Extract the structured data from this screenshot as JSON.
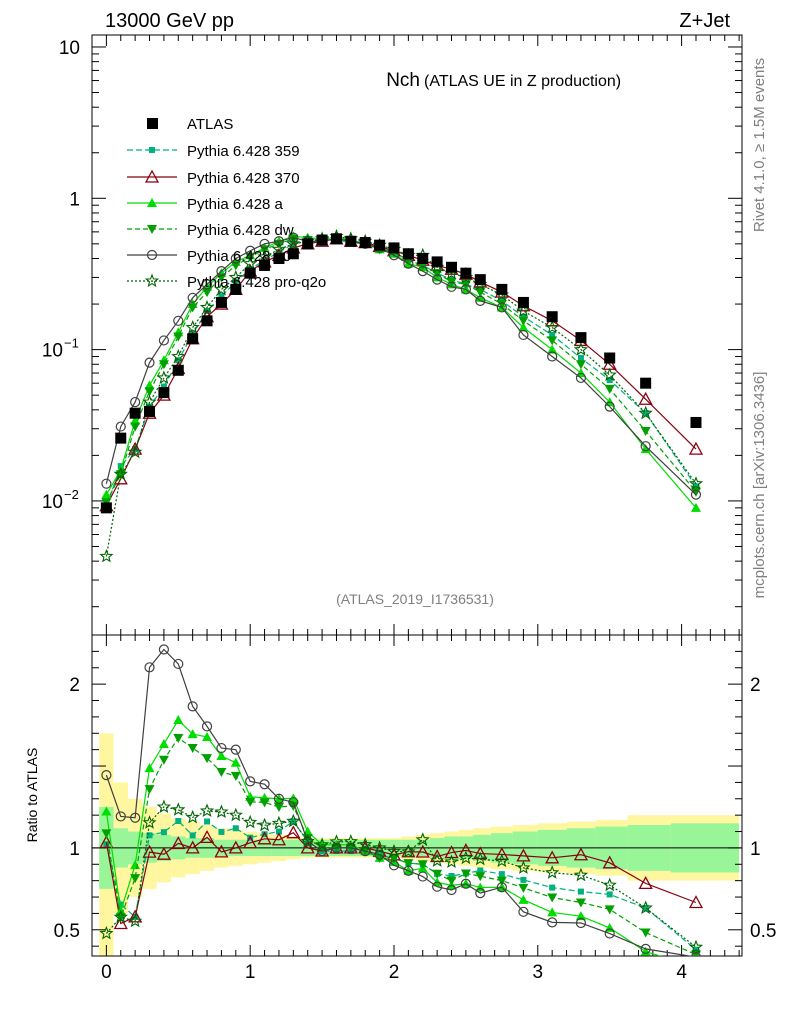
{
  "chart_data": {
    "type": "line",
    "top_left_label": "13000 GeV pp",
    "top_right_label": "Z+Jet",
    "title_main": "Nch",
    "title_sub": "(ATLAS UE in Z production)",
    "analysis_id": "(ATLAS_2019_I1736531)",
    "side_label_1": "Rivet 4.1.0, ≥ 1.5M events",
    "side_label_2": "mcplots.cern.ch [arXiv:1306.3436]",
    "ratio_ylabel": "Ratio to ATLAS",
    "main_ylim": [
      0.0013,
      12
    ],
    "main_yscale": "log",
    "main_yticks": [
      {
        "value": 10,
        "label": "10"
      },
      {
        "value": 1,
        "label": "1"
      },
      {
        "value": 0.1,
        "base": "10",
        "exp": "−1"
      },
      {
        "value": 0.01,
        "base": "10",
        "exp": "−2"
      }
    ],
    "ratio_ylim": [
      0.34,
      2.3
    ],
    "ratio_yticks": [
      {
        "value": 2,
        "label": "2"
      },
      {
        "value": 1,
        "label": "1"
      },
      {
        "value": 0.5,
        "label": "0.5"
      }
    ],
    "xlim": [
      -0.1,
      4.42
    ],
    "xticks": [
      {
        "value": 0,
        "label": "0"
      },
      {
        "value": 1,
        "label": "1"
      },
      {
        "value": 2,
        "label": "2"
      },
      {
        "value": 3,
        "label": "3"
      },
      {
        "value": 4,
        "label": "4"
      }
    ],
    "data": {
      "name": "ATLAS",
      "x": [
        0,
        0.1,
        0.2,
        0.3,
        0.4,
        0.5,
        0.6,
        0.7,
        0.8,
        0.9,
        1.0,
        1.1,
        1.2,
        1.3,
        1.4,
        1.5,
        1.6,
        1.7,
        1.8,
        1.9,
        2.0,
        2.1,
        2.2,
        2.3,
        2.4,
        2.5,
        2.6,
        2.75,
        2.9,
        3.1,
        3.3,
        3.5,
        3.75,
        4.1
      ],
      "y": [
        0.009,
        0.026,
        0.038,
        0.039,
        0.052,
        0.073,
        0.118,
        0.155,
        0.205,
        0.25,
        0.32,
        0.36,
        0.4,
        0.43,
        0.5,
        0.53,
        0.54,
        0.52,
        0.51,
        0.49,
        0.47,
        0.43,
        0.4,
        0.38,
        0.35,
        0.32,
        0.29,
        0.25,
        0.205,
        0.165,
        0.12,
        0.088,
        0.06,
        0.033
      ],
      "band_inner": [
        0.25,
        0.12,
        0.1,
        0.09,
        0.08,
        0.07,
        0.06,
        0.06,
        0.05,
        0.05,
        0.05,
        0.05,
        0.05,
        0.05,
        0.05,
        0.05,
        0.05,
        0.05,
        0.05,
        0.05,
        0.05,
        0.05,
        0.05,
        0.06,
        0.07,
        0.07,
        0.08,
        0.09,
        0.1,
        0.11,
        0.12,
        0.13,
        0.14,
        0.15
      ],
      "band_outer": [
        0.7,
        0.4,
        0.3,
        0.25,
        0.21,
        0.18,
        0.16,
        0.14,
        0.12,
        0.11,
        0.1,
        0.09,
        0.08,
        0.07,
        0.06,
        0.06,
        0.06,
        0.06,
        0.06,
        0.06,
        0.06,
        0.07,
        0.08,
        0.09,
        0.1,
        0.11,
        0.12,
        0.13,
        0.14,
        0.15,
        0.16,
        0.17,
        0.2,
        0.2
      ]
    },
    "series": [
      {
        "name": "Pythia 6.428 359",
        "color": "#00b080",
        "dash": "6,3",
        "marker": "square-small",
        "values": [
          0.0092,
          0.017,
          0.022,
          0.042,
          0.057,
          0.085,
          0.127,
          0.18,
          0.225,
          0.28,
          0.34,
          0.39,
          0.44,
          0.5,
          0.52,
          0.52,
          0.53,
          0.51,
          0.5,
          0.47,
          0.44,
          0.39,
          0.36,
          0.32,
          0.29,
          0.27,
          0.25,
          0.21,
          0.165,
          0.125,
          0.088,
          0.063,
          0.038,
          0.0125
        ]
      },
      {
        "name": "Pythia 6.428 370",
        "color": "#8b0011",
        "dash": "",
        "marker": "triangle-open",
        "values": [
          0.0093,
          0.014,
          0.022,
          0.038,
          0.05,
          0.075,
          0.118,
          0.165,
          0.2,
          0.25,
          0.33,
          0.38,
          0.42,
          0.47,
          0.5,
          0.52,
          0.54,
          0.52,
          0.51,
          0.48,
          0.45,
          0.42,
          0.39,
          0.36,
          0.34,
          0.315,
          0.28,
          0.24,
          0.195,
          0.155,
          0.115,
          0.08,
          0.047,
          0.022
        ]
      },
      {
        "name": "Pythia 6.428 a",
        "color": "#00dd00",
        "dash": "",
        "marker": "triangle-filled",
        "values": [
          0.011,
          0.016,
          0.034,
          0.058,
          0.085,
          0.13,
          0.2,
          0.26,
          0.32,
          0.38,
          0.42,
          0.47,
          0.52,
          0.56,
          0.55,
          0.54,
          0.55,
          0.53,
          0.5,
          0.46,
          0.43,
          0.37,
          0.35,
          0.3,
          0.27,
          0.25,
          0.22,
          0.19,
          0.14,
          0.1,
          0.07,
          0.045,
          0.022,
          0.009
        ]
      },
      {
        "name": "Pythia 6.428 dw",
        "color": "#00a000",
        "dash": "5,3",
        "marker": "triangle-down-filled",
        "values": [
          0.0098,
          0.015,
          0.031,
          0.053,
          0.08,
          0.122,
          0.19,
          0.24,
          0.3,
          0.36,
          0.41,
          0.46,
          0.5,
          0.54,
          0.53,
          0.53,
          0.54,
          0.52,
          0.5,
          0.46,
          0.44,
          0.39,
          0.36,
          0.32,
          0.28,
          0.27,
          0.24,
          0.2,
          0.155,
          0.115,
          0.08,
          0.055,
          0.029,
          0.0115
        ]
      },
      {
        "name": "Pythia 6.428 p0",
        "color": "#404040",
        "dash": "",
        "marker": "circle-open",
        "values": [
          0.013,
          0.031,
          0.045,
          0.082,
          0.115,
          0.155,
          0.22,
          0.27,
          0.33,
          0.4,
          0.45,
          0.5,
          0.52,
          0.55,
          0.52,
          0.52,
          0.54,
          0.52,
          0.5,
          0.47,
          0.42,
          0.37,
          0.33,
          0.29,
          0.26,
          0.25,
          0.21,
          0.19,
          0.125,
          0.09,
          0.065,
          0.042,
          0.023,
          0.011
        ]
      },
      {
        "name": "Pythia 6.428 pro-q2o",
        "color": "#006400",
        "dash": "2,2",
        "marker": "star-open",
        "values": [
          0.0043,
          0.015,
          0.021,
          0.045,
          0.065,
          0.09,
          0.14,
          0.19,
          0.25,
          0.3,
          0.37,
          0.41,
          0.46,
          0.5,
          0.52,
          0.54,
          0.56,
          0.54,
          0.52,
          0.49,
          0.46,
          0.42,
          0.42,
          0.35,
          0.32,
          0.3,
          0.27,
          0.23,
          0.18,
          0.14,
          0.1,
          0.068,
          0.038,
          0.013
        ]
      }
    ]
  }
}
